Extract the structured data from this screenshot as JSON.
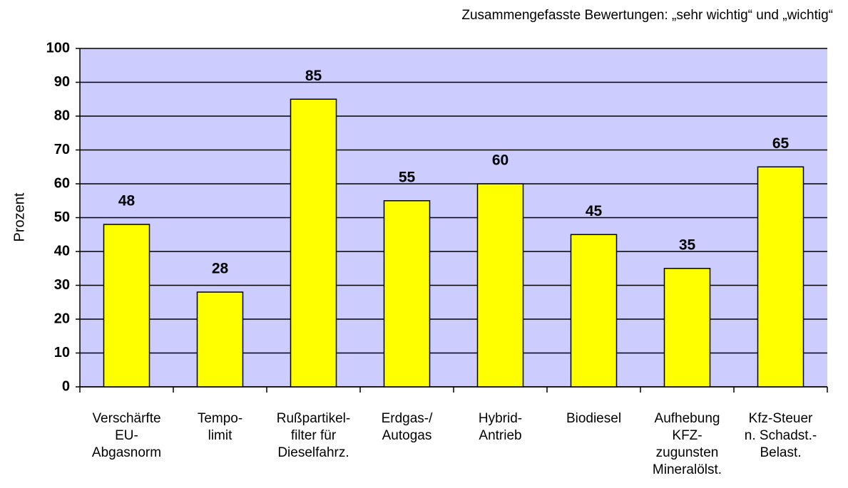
{
  "chart_data": {
    "type": "bar",
    "subtitle": "Zusammengefasste Bewertungen: „sehr wichtig“ und „wichtig“",
    "y_label": "Prozent",
    "categories": [
      "Verschärfte\nEU-\nAbgasnorm",
      "Tempo-\nlimit",
      "Rußpartikel-\nfilter für\nDieselfahrz.",
      "Erdgas-/\nAutogas",
      "Hybrid-\nAntrieb",
      "Biodiesel",
      "Aufhebung\nKFZ-\nzugunsten\nMineralölst.",
      "Kfz-Steuer\nn. Schadst.-\nBelast."
    ],
    "values": [
      48,
      28,
      85,
      55,
      60,
      45,
      35,
      65
    ],
    "color": "#ffff00",
    "background": "#ccccff",
    "ylim": [
      0,
      100
    ],
    "yticks": [
      0,
      10,
      20,
      30,
      40,
      50,
      60,
      70,
      80,
      90,
      100
    ],
    "grid": true
  }
}
